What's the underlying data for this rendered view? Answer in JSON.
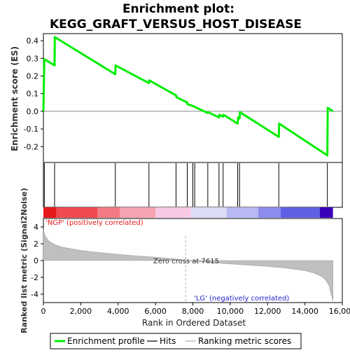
{
  "title_line1": "Enrichment plot:",
  "title_line2": "KEGG_GRAFT_VERSUS_HOST_DISEASE",
  "chart_data": [
    {
      "type": "line",
      "panel": "enrichment",
      "ylabel": "Enrichment score (ES)",
      "ylim": [
        -0.29,
        0.44
      ],
      "yticks": [
        0.4,
        0.3,
        0.2,
        0.1,
        0.0,
        -0.1,
        -0.2
      ],
      "ytick_labels": [
        "0.4",
        "0.3",
        "0.2",
        "0.1",
        "0.0",
        "-0.1",
        "-0.2"
      ],
      "grid": false,
      "series": [
        {
          "name": "Enrichment profile",
          "color": "#00ee00",
          "x": [
            0,
            50,
            600,
            610,
            3850,
            3860,
            5650,
            5660,
            7100,
            7120,
            7700,
            7720,
            8000,
            8100,
            8800,
            8820,
            9400,
            9420,
            9620,
            9640,
            10400,
            10420,
            10500,
            10520,
            12600,
            12620,
            15200,
            15220,
            15500
          ],
          "y": [
            0.0,
            0.295,
            0.26,
            0.42,
            0.21,
            0.26,
            0.16,
            0.175,
            0.09,
            0.08,
            0.05,
            0.04,
            0.03,
            0.025,
            -0.01,
            -0.005,
            -0.035,
            -0.02,
            -0.03,
            -0.02,
            -0.07,
            -0.035,
            -0.04,
            -0.005,
            -0.145,
            -0.07,
            -0.25,
            0.02,
            0.0
          ]
        }
      ]
    },
    {
      "type": "bar",
      "panel": "hits",
      "series": [
        {
          "name": "Hits",
          "color": "#000000",
          "x": [
            50,
            600,
            3850,
            5650,
            7100,
            7700,
            8000,
            8100,
            8800,
            9400,
            9620,
            10400,
            10500,
            12600,
            15200
          ]
        }
      ],
      "color_bar": [
        {
          "from": 0,
          "to": 700,
          "color": "#e41a1c"
        },
        {
          "from": 700,
          "to": 2900,
          "color": "#f0494f"
        },
        {
          "from": 2900,
          "to": 4100,
          "color": "#f37a84"
        },
        {
          "from": 4100,
          "to": 6000,
          "color": "#f6a3b2"
        },
        {
          "from": 6000,
          "to": 7900,
          "color": "#f8c8e4"
        },
        {
          "from": 7900,
          "to": 9800,
          "color": "#dcdcf6"
        },
        {
          "from": 9800,
          "to": 11500,
          "color": "#b8b8f2"
        },
        {
          "from": 11500,
          "to": 12700,
          "color": "#8c8ced"
        },
        {
          "from": 12700,
          "to": 14800,
          "color": "#5f5fe4"
        },
        {
          "from": 14800,
          "to": 15500,
          "color": "#3a00b8"
        }
      ]
    },
    {
      "type": "area",
      "panel": "ranked-list",
      "ylabel": "Ranked list metric (Signal2Noise)",
      "xlabel": "Rank in Ordered Dataset",
      "xlim": [
        0,
        16000
      ],
      "xticks": [
        0,
        2000,
        4000,
        6000,
        8000,
        10000,
        12000,
        14000,
        16000
      ],
      "xtick_labels": [
        "0",
        "2,000",
        "4,000",
        "6,000",
        "8,000",
        "10,000",
        "12,000",
        "14,000",
        "16,000"
      ],
      "ylim": [
        -5,
        5
      ],
      "yticks": [
        4,
        2,
        0,
        -2,
        -4
      ],
      "ytick_labels": [
        "4",
        "2",
        "0",
        "-2",
        "-4"
      ],
      "series": [
        {
          "name": "Ranking metric scores",
          "color": "#bfbfbf",
          "x": [
            0,
            100,
            300,
            600,
            1000,
            2000,
            3000,
            4000,
            5000,
            6000,
            7000,
            7615,
            8000,
            9000,
            10000,
            11000,
            12000,
            13000,
            14000,
            14500,
            14900,
            15100,
            15300,
            15400,
            15500
          ],
          "y": [
            3.7,
            2.9,
            2.3,
            1.9,
            1.6,
            1.2,
            0.95,
            0.75,
            0.55,
            0.4,
            0.2,
            0.0,
            -0.1,
            -0.25,
            -0.4,
            -0.55,
            -0.7,
            -0.9,
            -1.2,
            -1.5,
            -1.9,
            -2.3,
            -3.0,
            -4.0,
            -4.8
          ]
        }
      ],
      "zero_cross_label": "Zero cross at 7615",
      "pos_label": "'NGP' (positively correlated)",
      "neg_label": "'LG' (negatively correlated)",
      "pos_color": "#e41a1c",
      "neg_color": "#2222cc"
    }
  ],
  "legend": [
    {
      "label": "Enrichment profile",
      "color": "#00ee00"
    },
    {
      "label": "Hits",
      "color": "#000000"
    },
    {
      "label": "Ranking metric scores",
      "color": "#bfbfbf"
    }
  ]
}
